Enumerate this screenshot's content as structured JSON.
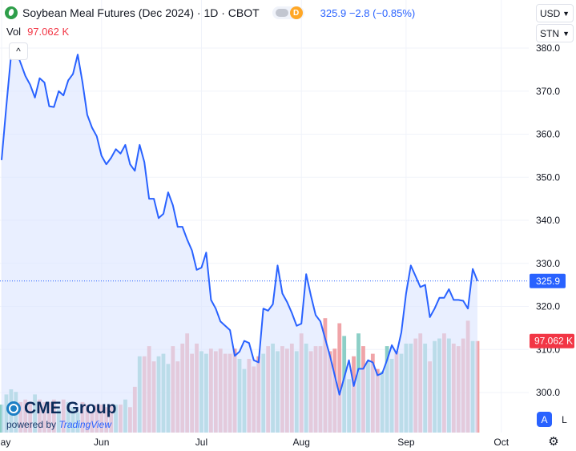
{
  "header": {
    "title": "Soybean Meal Futures (Dec 2024) · 1D · CBOT",
    "pill_letter": "D",
    "quote": "325.9  −2.8 (−0.85%)"
  },
  "volume": {
    "label": "Vol",
    "value": "97.062 K"
  },
  "controls": {
    "currency": "USD",
    "unit": "STN",
    "collapse": "^",
    "mode_auto": "A",
    "mode_log": "L",
    "settings": "⚙"
  },
  "logo": {
    "brand": "CME Group",
    "powered_by": "powered by",
    "powered_name": "TradingView"
  },
  "colors": {
    "line": "#2962ff",
    "area": "#dbe4ff",
    "vol_up": "#8ccfc7",
    "vol_down": "#f0a4a8",
    "last_price_bg": "#2962ff",
    "last_vol_bg": "#f23645",
    "grid": "#f0f3fa",
    "text": "#131722"
  },
  "chart_data": {
    "type": "line",
    "price_scale": {
      "min": 300,
      "max": 380,
      "ticks": [
        "380.0",
        "370.0",
        "360.0",
        "350.0",
        "340.0",
        "330.0",
        "320.0",
        "310.0",
        "300.0"
      ]
    },
    "time_ticks": [
      {
        "label": "May",
        "index": 0
      },
      {
        "label": "Jun",
        "index": 21
      },
      {
        "label": "Jul",
        "index": 42
      },
      {
        "label": "Aug",
        "index": 63
      },
      {
        "label": "Sep",
        "index": 85
      },
      {
        "label": "Oct",
        "index": 105
      }
    ],
    "last_price": "325.9",
    "last_volume": "97.062 K",
    "prices": [
      354.0,
      366.5,
      378.5,
      379.5,
      376.5,
      373.5,
      371.5,
      368.5,
      373.0,
      372.0,
      366.5,
      366.3,
      370.0,
      369.0,
      372.5,
      374.0,
      378.5,
      372.0,
      364.5,
      361.5,
      359.5,
      355.0,
      353.0,
      354.5,
      356.5,
      355.5,
      357.5,
      353.0,
      351.5,
      357.5,
      353.5,
      345.0,
      345.0,
      340.5,
      341.5,
      346.5,
      343.5,
      338.5,
      338.5,
      335.5,
      333.0,
      328.5,
      329.0,
      332.5,
      321.5,
      319.5,
      316.5,
      315.5,
      314.5,
      308.5,
      309.5,
      312.0,
      311.5,
      307.5,
      307.0,
      319.5,
      319.0,
      320.5,
      329.5,
      323.0,
      321.0,
      318.5,
      315.5,
      316.0,
      327.5,
      322.5,
      318.0,
      316.5,
      312.5,
      308.5,
      304.0,
      299.5,
      303.5,
      307.5,
      301.5,
      305.5,
      305.5,
      307.5,
      307.0,
      304.0,
      304.5,
      307.5,
      311.0,
      309.0,
      314.0,
      323.0,
      329.5,
      327.0,
      324.5,
      325.0,
      317.5,
      319.5,
      322.0,
      322.0,
      324.0,
      321.5,
      321.5,
      321.3,
      319.5,
      328.7,
      325.9
    ],
    "volumes": [
      5.5,
      7.5,
      8.5,
      8.0,
      6.0,
      6.5,
      6.0,
      7.5,
      6.5,
      6.0,
      6.0,
      6.5,
      4.5,
      6.5,
      6.0,
      5.0,
      4.0,
      6.0,
      5.5,
      4.0,
      5.5,
      5.5,
      5.0,
      5.5,
      5.5,
      5.5,
      6.5,
      5.0,
      9.0,
      15.0,
      15.0,
      17.0,
      14.0,
      15.0,
      15.5,
      13.5,
      17.0,
      14.0,
      17.5,
      19.5,
      15.5,
      17.5,
      16.0,
      15.5,
      16.5,
      16.0,
      16.5,
      15.5,
      15.5,
      16.5,
      14.5,
      12.5,
      14.5,
      13.0,
      15.0,
      15.5,
      17.0,
      17.5,
      16.0,
      17.0,
      16.5,
      17.5,
      16.0,
      19.5,
      17.5,
      16.0,
      17.0,
      17.0,
      22.5,
      16.0,
      16.5,
      21.5,
      19.0,
      10.5,
      15.0,
      19.5,
      17.0,
      14.0,
      15.5,
      12.5,
      12.0,
      17.0,
      14.5,
      16.0,
      15.5,
      17.5,
      17.5,
      18.5,
      19.5,
      17.5,
      14.0,
      18.0,
      18.5,
      19.5,
      18.5,
      17.5,
      17.0,
      18.5,
      22.0,
      18.0,
      18.0
    ],
    "volume_dirs": [
      1,
      1,
      1,
      1,
      0,
      0,
      0,
      1,
      0,
      0,
      0,
      0,
      1,
      0,
      1,
      1,
      1,
      0,
      0,
      0,
      0,
      0,
      0,
      0,
      1,
      0,
      1,
      0,
      0,
      1,
      0,
      0,
      0,
      1,
      1,
      1,
      0,
      0,
      0,
      0,
      0,
      0,
      1,
      1,
      0,
      0,
      0,
      0,
      0,
      0,
      1,
      1,
      0,
      0,
      0,
      1,
      0,
      1,
      1,
      0,
      0,
      0,
      1,
      0,
      1,
      0,
      0,
      0,
      0,
      0,
      0,
      0,
      1,
      1,
      0,
      1,
      0,
      1,
      0,
      0,
      1,
      1,
      1,
      0,
      1,
      1,
      1,
      0,
      0,
      1,
      0,
      1,
      1,
      0,
      1,
      0,
      0,
      0,
      0,
      1,
      0
    ]
  }
}
